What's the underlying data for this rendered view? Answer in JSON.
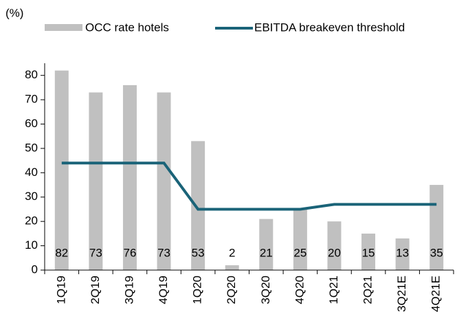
{
  "chart_data": {
    "type": "bar",
    "y_unit_label": "(%)",
    "categories": [
      "1Q19",
      "2Q19",
      "3Q19",
      "4Q19",
      "1Q20",
      "2Q20",
      "3Q20",
      "4Q20",
      "1Q21",
      "2Q21",
      "3Q21E",
      "4Q21E"
    ],
    "series": [
      {
        "name": "OCC rate hotels",
        "type": "bar",
        "color": "#c0c0c0",
        "values": [
          82,
          73,
          76,
          73,
          53,
          2,
          21,
          25,
          20,
          15,
          13,
          35
        ]
      },
      {
        "name": "EBITDA breakeven threshold",
        "type": "line",
        "color": "#1a6378",
        "values": [
          44,
          44,
          44,
          44,
          25,
          25,
          25,
          25,
          27,
          27,
          27,
          27
        ]
      }
    ],
    "ylim": [
      0,
      85
    ],
    "yticks": [
      0,
      10,
      20,
      30,
      40,
      50,
      60,
      70,
      80
    ],
    "grid": false
  }
}
